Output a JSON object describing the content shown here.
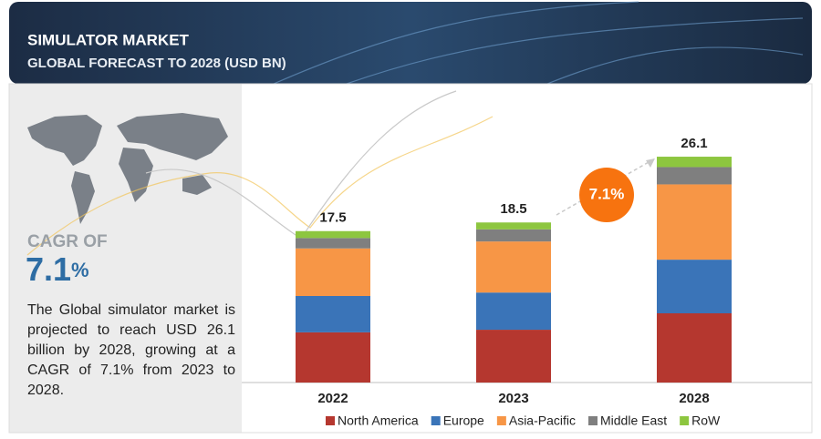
{
  "header": {
    "title": "SIMULATOR MARKET",
    "subtitle": "GLOBAL FORECAST TO 2028 (USD BN)"
  },
  "side_panel": {
    "cagr_label": "CAGR OF",
    "cagr_value": "7.1",
    "cagr_unit": "%",
    "description": "The Global simulator market is projected to reach USD 26.1 billion by 2028, growing at a CAGR of 7.1% from 2023 to 2028."
  },
  "chart_data": {
    "type": "stacked_bar",
    "categories": [
      "2022",
      "2023",
      "2028"
    ],
    "series": [
      {
        "name": "North America",
        "color": "#b5372f",
        "values": [
          5.8,
          6.1,
          8.0
        ]
      },
      {
        "name": "Europe",
        "color": "#3a74b8",
        "values": [
          4.2,
          4.3,
          6.2
        ]
      },
      {
        "name": "Asia-Pacific",
        "color": "#f79646",
        "values": [
          5.5,
          5.9,
          8.7
        ]
      },
      {
        "name": "Middle East",
        "color": "#7f7f7f",
        "values": [
          1.2,
          1.4,
          2.0
        ]
      },
      {
        "name": "RoW",
        "color": "#8dc63f",
        "values": [
          0.8,
          0.8,
          1.2
        ]
      }
    ],
    "totals": [
      17.5,
      18.5,
      26.1
    ],
    "annotation": "7.1%",
    "annotation_color": "#f7730f"
  }
}
